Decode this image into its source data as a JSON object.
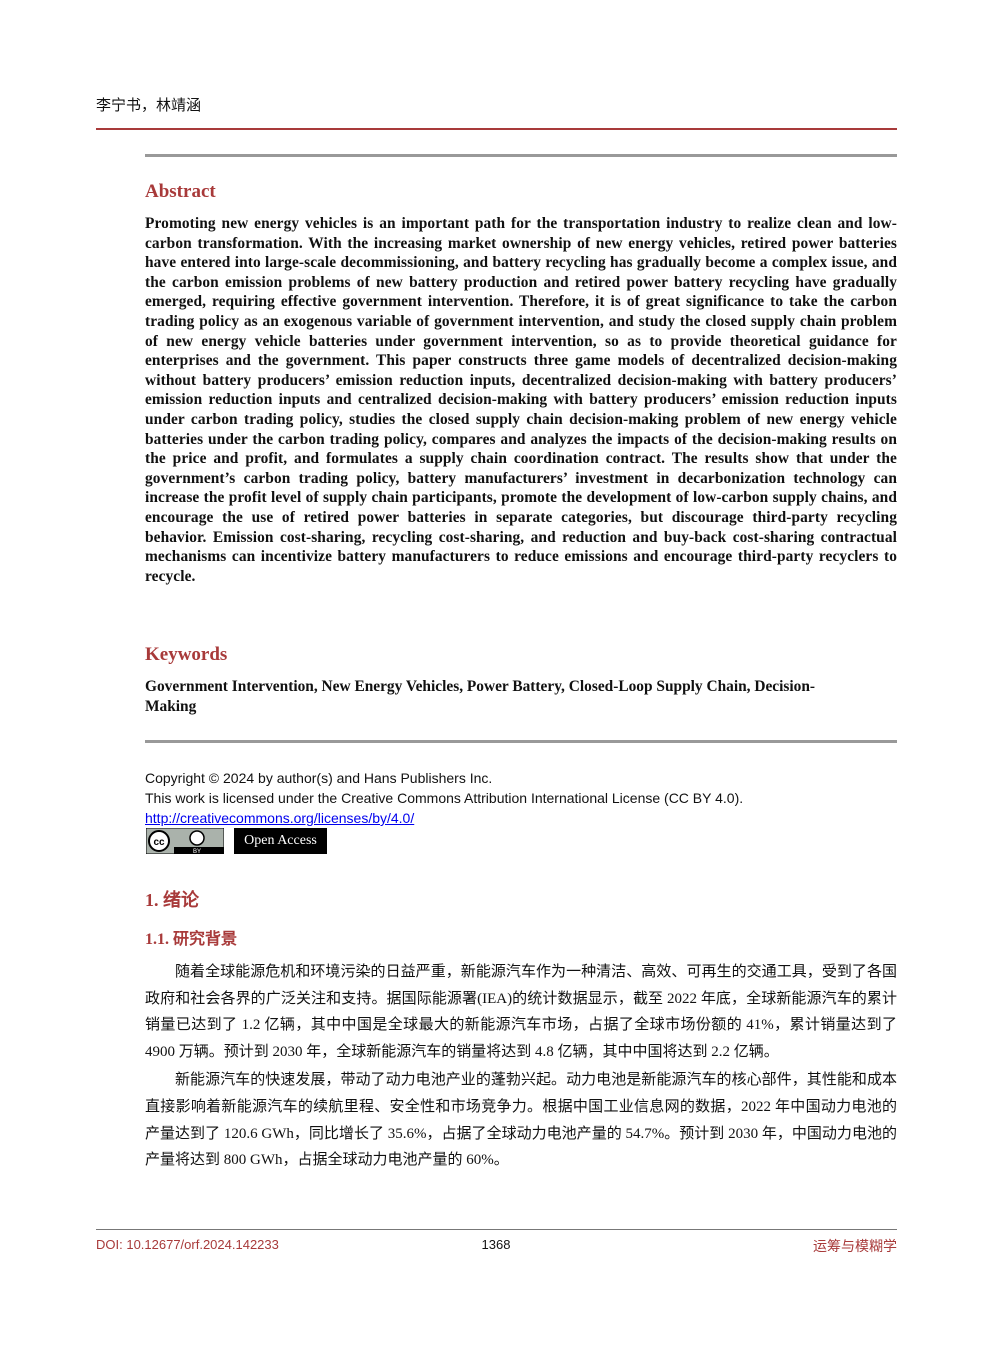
{
  "header": {
    "authors": "李宁书，林靖涵"
  },
  "abstract": {
    "title": "Abstract",
    "text": "Promoting new energy vehicles is an important path for the transportation industry to realize clean and low-carbon transformation. With the increasing market ownership of new energy vehicles, retired power batteries have entered into large-scale decommissioning, and battery recycling has gradually become a complex issue, and the carbon emission problems of new battery production and retired power battery recycling have gradually emerged, requiring effective government intervention. Therefore, it is of great significance to take the carbon trading policy as an exogenous variable of government intervention, and study the closed supply chain problem of new energy vehicle batteries under government intervention, so as to provide theoretical guidance for enterprises and the government. This paper constructs three game models of decentralized decision-making without battery producers’ emission reduction inputs, decentralized decision-making with battery producers’ emission reduction inputs and centralized decision-making with battery producers’ emission reduction inputs under carbon trading policy, studies the closed supply chain decision-making problem of new energy vehicle batteries under the carbon trading policy, compares and analyzes the impacts of the decision-making results on the price and profit, and formulates a supply chain coordination contract. The results show that under the government’s carbon trading policy, battery manufacturers’ investment in decarbonization technology can increase the profit level of supply chain participants, promote the development of low-carbon supply chains, and encourage the use of retired power batteries in separate categories, but discourage third-party recycling behavior. Emission cost-sharing, recycling cost-sharing, and reduction and buy-back cost-sharing contractual mechanisms can incentivize battery manufacturers to reduce emissions and encourage third-party recyclers to recycle."
  },
  "keywords": {
    "title": "Keywords",
    "text": "Government Intervention, New Energy Vehicles, Power Battery, Closed-Loop Supply Chain, Decision-Making"
  },
  "license": {
    "copyright": "Copyright © 2024 by author(s) and Hans Publishers Inc.",
    "statement": "This work is licensed under the Creative Commons Attribution International License (CC BY 4.0).",
    "link": "http://creativecommons.org/licenses/by/4.0/",
    "cc_icon": "cc",
    "by_icon": "BY",
    "open_access": "Open Access"
  },
  "section": {
    "heading": "1.  绪论",
    "subheading": "1.1.  研究背景",
    "paragraphs": [
      "随着全球能源危机和环境污染的日益严重，新能源汽车作为一种清洁、高效、可再生的交通工具，受到了各国政府和社会各界的广泛关注和支持。据国际能源署(IEA)的统计数据显示，截至 2022 年底，全球新能源汽车的累计销量已达到了 1.2 亿辆，其中中国是全球最大的新能源汽车市场，占据了全球市场份额的 41%，累计销量达到了 4900 万辆。预计到 2030 年，全球新能源汽车的销量将达到 4.8 亿辆，其中中国将达到 2.2 亿辆。",
      "新能源汽车的快速发展，带动了动力电池产业的蓬勃兴起。动力电池是新能源汽车的核心部件，其性能和成本直接影响着新能源汽车的续航里程、安全性和市场竞争力。根据中国工业信息网的数据，2022 年中国动力电池的产量达到了 120.6 GWh，同比增长了 35.6%，占据了全球动力电池产量的 54.7%。预计到 2030 年，中国动力电池的产量将达到 800 GWh，占据全球动力电池产量的 60%。"
    ]
  },
  "footer": {
    "doi": "DOI: 10.12677/orf.2024.142233",
    "page": "1368",
    "journal": "运筹与模糊学"
  }
}
